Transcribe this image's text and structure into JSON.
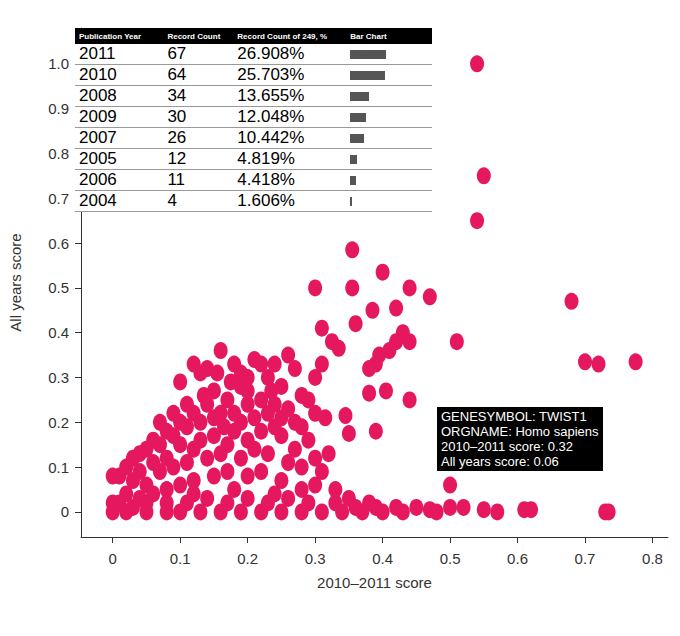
{
  "chart_data": {
    "type": "scatter",
    "x_label": "2010–2011 score",
    "y_label": "All years score",
    "color": "#e5185f",
    "marker": "ellipse",
    "grid": false,
    "xlim": [
      -0.047,
      0.823
    ],
    "ylim": [
      -0.056,
      1.08
    ],
    "xticks": [
      0,
      0.1,
      0.2,
      0.3,
      0.4,
      0.5,
      0.6,
      0.7,
      0.8
    ],
    "yticks": [
      0,
      0.1,
      0.2,
      0.3,
      0.4,
      0.5,
      0.6,
      0.7,
      0.8,
      0.9,
      {
        "value": 1,
        "label": "1.0"
      }
    ],
    "x": [
      0.54,
      0.55,
      0.54,
      0.355,
      0.4,
      0.68,
      0.3,
      0.355,
      0.44,
      0.47,
      0.385,
      0.42,
      0.36,
      0.31,
      0.325,
      0.335,
      0.43,
      0.44,
      0.42,
      0.41,
      0.39,
      0.395,
      0.38,
      0.38,
      0.405,
      0.44,
      0.51,
      0.7,
      0.72,
      0.775,
      0.31,
      0.35,
      0.39,
      0.345,
      0.315,
      0.5,
      0.73,
      0.735,
      0.62,
      0.61,
      0.57,
      0.55,
      0.52,
      0.5,
      0.48,
      0.47,
      0.45,
      0.43,
      0.16,
      0.12,
      0.1,
      0.13,
      0.14,
      0.18,
      0.21,
      0.22,
      0.24,
      0.23,
      0.26,
      0.27,
      0.2,
      0.15,
      0.19,
      0.25,
      0.28,
      0.3,
      0.29,
      0.3,
      0.27,
      0.24,
      0.22,
      0.2,
      0.17,
      0.14,
      0.12,
      0.1,
      0.08,
      0.06,
      0.04,
      0.03,
      0.02,
      0.01,
      0,
      0.05,
      0.07,
      0.09,
      0.11,
      0.13,
      0.15,
      0.16,
      0.18,
      0.19,
      0.21,
      0.23,
      0.25,
      0.26,
      0.28,
      0.29,
      0.27,
      0.25,
      0.24,
      0.22,
      0.2,
      0.18,
      0.17,
      0.15,
      0.13,
      0.12,
      0.1,
      0.08,
      0.06,
      0.04,
      0.03,
      0.05,
      0.07,
      0.09,
      0.11,
      0.14,
      0.16,
      0.19,
      0.21,
      0.23,
      0.26,
      0.28,
      0.3,
      0.32,
      0.31,
      0.3,
      0.28,
      0.25,
      0.22,
      0.2,
      0.17,
      0.15,
      0.12,
      0.1,
      0.08,
      0.06,
      0.04,
      0.02,
      0.01,
      0,
      0,
      0.02,
      0.05,
      0.08,
      0.1,
      0.13,
      0.16,
      0.19,
      0.22,
      0.25,
      0.28,
      0.31,
      0.34,
      0.37,
      0.4,
      0.33,
      0.36,
      0.39,
      0.42,
      0.29,
      0.26,
      0.23,
      0.2,
      0.17,
      0.14,
      0.11,
      0.08,
      0.05,
      0.03,
      0.12,
      0.18,
      0.24,
      0.35,
      0.38,
      0.33,
      0.11,
      0.135,
      0.09,
      0.175,
      0.2,
      0.235,
      0.155,
      0.165,
      0.07,
      0.19
    ],
    "values": [
      1.0,
      0.75,
      0.65,
      0.585,
      0.535,
      0.47,
      0.5,
      0.5,
      0.5,
      0.48,
      0.45,
      0.455,
      0.42,
      0.41,
      0.38,
      0.365,
      0.4,
      0.38,
      0.38,
      0.36,
      0.33,
      0.35,
      0.32,
      0.265,
      0.27,
      0.25,
      0.38,
      0.335,
      0.33,
      0.335,
      0.33,
      0.175,
      0.18,
      0.215,
      0.21,
      0.06,
      0,
      0,
      0.005,
      0.005,
      0,
      0.005,
      0.01,
      0.01,
      0,
      0.005,
      0.01,
      0,
      0.36,
      0.33,
      0.29,
      0.31,
      0.32,
      0.33,
      0.34,
      0.33,
      0.33,
      0.3,
      0.35,
      0.32,
      0.3,
      0.27,
      0.28,
      0.28,
      0.26,
      0.3,
      0.25,
      0.22,
      0.2,
      0.24,
      0.25,
      0.24,
      0.25,
      0.24,
      0.22,
      0.2,
      0.18,
      0.16,
      0.13,
      0.12,
      0.1,
      0.08,
      0.08,
      0.14,
      0.15,
      0.17,
      0.19,
      0.2,
      0.21,
      0.22,
      0.22,
      0.2,
      0.21,
      0.22,
      0.21,
      0.23,
      0.19,
      0.16,
      0.14,
      0.17,
      0.19,
      0.18,
      0.16,
      0.18,
      0.15,
      0.17,
      0.16,
      0.14,
      0.15,
      0.12,
      0.11,
      0.09,
      0.07,
      0.06,
      0.09,
      0.1,
      0.11,
      0.12,
      0.13,
      0.12,
      0.14,
      0.13,
      0.11,
      0.1,
      0.12,
      0.13,
      0.09,
      0.06,
      0.05,
      0.07,
      0.09,
      0.08,
      0.09,
      0.08,
      0.07,
      0.06,
      0.05,
      0.04,
      0.03,
      0.04,
      0.02,
      0.02,
      0,
      0,
      0,
      0,
      0,
      0,
      0,
      0,
      0,
      0,
      0,
      0,
      0,
      0,
      0,
      0.02,
      0.01,
      0.01,
      0.01,
      0.02,
      0.03,
      0.02,
      0.03,
      0.02,
      0.03,
      0.02,
      0.02,
      0.02,
      0.01,
      0.04,
      0.05,
      0.04,
      0.03,
      0.02,
      0.05,
      0.24,
      0.26,
      0.22,
      0.29,
      0.27,
      0.27,
      0.31,
      0.19,
      0.2,
      0.31
    ],
    "annotation": [
      "GENESYMBOL: TWIST1",
      "ORGNAME: Homo sapiens",
      "2010–2011 score: 0.32",
      "All years score: 0.06"
    ]
  },
  "table": {
    "header": [
      "Publication Year",
      "Record Count",
      "Record Count of 249, %",
      "Bar Chart"
    ],
    "rows": [
      [
        "2011",
        67,
        "26.908%"
      ],
      [
        "2010",
        64,
        "25.703%"
      ],
      [
        "2008",
        34,
        "13.655%"
      ],
      [
        "2009",
        30,
        "12.048%"
      ],
      [
        "2007",
        26,
        "10.442%"
      ],
      [
        "2005",
        12,
        "4.819%"
      ],
      [
        "2006",
        11,
        "4.418%"
      ],
      [
        "2004",
        4,
        "1.606%"
      ]
    ]
  }
}
